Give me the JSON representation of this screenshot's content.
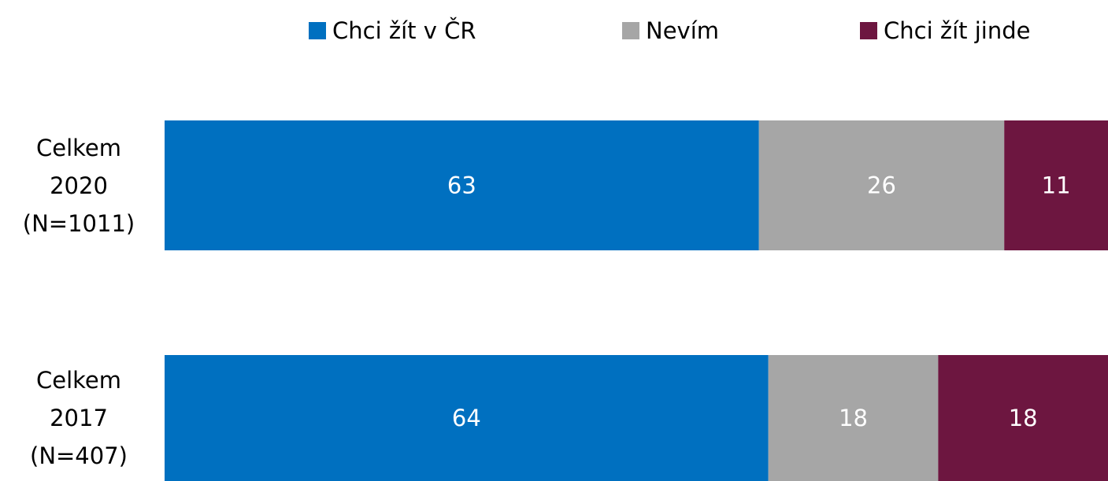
{
  "chart_data": {
    "type": "stacked_barh",
    "categories": [
      "Celkem 2020 (N=1011)",
      "Celkem 2017 (N=407)"
    ],
    "series": [
      {
        "name": "Chci žít v ČR",
        "color": "#0070c0",
        "values": [
          63,
          64
        ]
      },
      {
        "name": "Nevím",
        "color": "#a6a6a6",
        "values": [
          26,
          18
        ]
      },
      {
        "name": "Chci žít jinde",
        "color": "#6d1640",
        "values": [
          11,
          18
        ]
      }
    ],
    "xlim": [
      0,
      100
    ],
    "legend": "top"
  }
}
